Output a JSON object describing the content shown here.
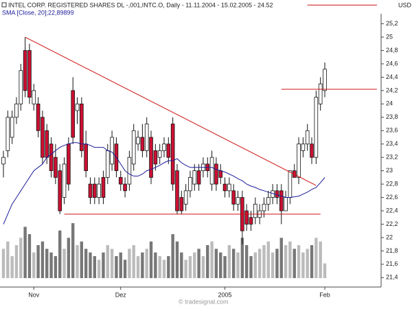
{
  "chart_data": {
    "type": "candlestick",
    "title": "INTEL CORP. REGISTERED SHARES DL -,001,INTC.O, Daily - 11.11.2004 - 15.02.2005 - 24.52",
    "subtitle": "SMA [Close, 20];22,89899",
    "y_axis_label": "USD",
    "watermark": "© tradesignal.com",
    "categories": [
      null,
      null,
      null,
      null,
      null,
      null,
      null,
      "Nov",
      null,
      null,
      null,
      null,
      null,
      null,
      null,
      null,
      null,
      null,
      null,
      null,
      null,
      null,
      null,
      null,
      null,
      null,
      null,
      "Dez",
      null,
      null,
      null,
      null,
      null,
      null,
      null,
      null,
      null,
      null,
      null,
      null,
      null,
      null,
      null,
      null,
      null,
      null,
      null,
      null,
      null,
      null,
      null,
      "2005",
      null,
      null,
      null,
      null,
      null,
      null,
      null,
      null,
      null,
      null,
      null,
      null,
      null,
      null,
      null,
      null,
      null,
      null,
      null,
      null,
      null,
      null,
      "Feb"
    ],
    "open": [
      23.1,
      23.3,
      23.5,
      23.8,
      24.0,
      24.8,
      24.8,
      24.0,
      24.0,
      23.8,
      23.6,
      23.4,
      23.2,
      23.0,
      22.6,
      23.4,
      24.2,
      23.9,
      24.0,
      23.4,
      22.8,
      22.8,
      22.6,
      22.9,
      22.9,
      23.1,
      23.4,
      22.9,
      22.8,
      22.8,
      23.1,
      23.4,
      23.5,
      23.3,
      23.5,
      23.3,
      23.2,
      23.3,
      23.4,
      23.7,
      23.0,
      22.6,
      22.5,
      22.7,
      22.8,
      23.0,
      23.0,
      23.1,
      22.8,
      23.1,
      23.0,
      22.8,
      22.7,
      22.7,
      22.5,
      22.6,
      22.4,
      22.3,
      22.3,
      22.3,
      22.4,
      22.5,
      22.6,
      22.7,
      22.7,
      22.4,
      22.6,
      23.0,
      22.9,
      23.3,
      23.4,
      23.4,
      23.2,
      24.0,
      24.2
    ],
    "high": [
      23.3,
      23.9,
      23.9,
      24.1,
      24.6,
      25.0,
      24.9,
      24.3,
      24.1,
      23.9,
      23.7,
      23.5,
      23.4,
      23.1,
      23.2,
      23.5,
      24.4,
      24.1,
      24.1,
      23.6,
      22.9,
      22.9,
      22.9,
      23.0,
      23.4,
      23.6,
      23.5,
      23.0,
      22.9,
      23.3,
      23.7,
      23.6,
      23.7,
      23.8,
      23.6,
      23.4,
      23.4,
      23.5,
      23.5,
      23.8,
      23.1,
      22.7,
      22.8,
      23.0,
      23.1,
      23.1,
      23.2,
      23.2,
      23.3,
      23.2,
      23.1,
      22.9,
      22.9,
      22.8,
      22.7,
      22.7,
      22.5,
      22.4,
      22.6,
      22.5,
      22.6,
      22.7,
      22.8,
      22.8,
      22.8,
      22.7,
      23.0,
      23.1,
      23.5,
      23.5,
      23.7,
      23.5,
      24.2,
      24.4,
      24.62
    ],
    "low": [
      22.9,
      23.2,
      23.4,
      23.7,
      23.9,
      24.1,
      24.0,
      23.9,
      23.5,
      23.1,
      23.1,
      22.9,
      22.8,
      22.35,
      22.5,
      22.7,
      23.4,
      23.7,
      23.2,
      22.9,
      22.5,
      22.5,
      22.5,
      22.5,
      22.8,
      23.0,
      22.9,
      22.7,
      22.6,
      22.7,
      23.0,
      23.3,
      23.2,
      23.2,
      22.8,
      23.0,
      23.1,
      23.2,
      23.1,
      22.7,
      22.35,
      22.35,
      22.4,
      22.6,
      22.7,
      22.7,
      22.9,
      22.9,
      22.7,
      22.7,
      22.8,
      22.6,
      22.6,
      22.4,
      22.4,
      21.9,
      22.1,
      22.1,
      22.2,
      22.2,
      22.3,
      22.4,
      22.5,
      22.5,
      22.2,
      22.4,
      22.5,
      22.9,
      22.8,
      23.2,
      23.3,
      23.1,
      23.1,
      23.9,
      24.1
    ],
    "close": [
      23.2,
      23.8,
      23.8,
      24.0,
      24.5,
      24.2,
      24.1,
      24.2,
      23.6,
      23.2,
      23.2,
      23.0,
      22.9,
      22.4,
      23.1,
      22.8,
      23.5,
      24.0,
      23.3,
      23.0,
      22.6,
      22.6,
      22.8,
      22.6,
      23.3,
      23.5,
      23.0,
      22.8,
      22.7,
      23.2,
      23.6,
      23.5,
      23.3,
      23.7,
      22.9,
      23.1,
      23.3,
      23.4,
      23.2,
      22.8,
      22.4,
      22.4,
      22.7,
      22.9,
      23.0,
      22.8,
      23.1,
      23.0,
      23.2,
      22.8,
      22.9,
      22.7,
      22.8,
      22.5,
      22.6,
      22.1,
      22.2,
      22.2,
      22.5,
      22.4,
      22.5,
      22.6,
      22.7,
      22.6,
      22.4,
      22.6,
      23.0,
      22.9,
      23.4,
      23.4,
      23.6,
      23.2,
      24.1,
      24.3,
      24.52
    ],
    "volume": [
      40,
      50,
      30,
      45,
      55,
      70,
      60,
      35,
      45,
      50,
      40,
      35,
      30,
      65,
      40,
      55,
      75,
      45,
      50,
      40,
      35,
      30,
      25,
      35,
      45,
      40,
      30,
      35,
      25,
      40,
      45,
      30,
      35,
      40,
      50,
      35,
      30,
      25,
      30,
      60,
      50,
      35,
      25,
      30,
      35,
      40,
      30,
      45,
      50,
      40,
      35,
      30,
      45,
      40,
      35,
      55,
      45,
      30,
      35,
      40,
      45,
      50,
      35,
      40,
      55,
      45,
      50,
      40,
      45,
      35,
      40,
      45,
      55,
      50,
      20
    ],
    "up_color": "#ffffff",
    "down_color": "#cc1133",
    "volume_colors": [
      "#777777",
      "#bbbbbb"
    ],
    "series": [
      {
        "name": "SMA [Close, 20]",
        "color": "#1a1a99",
        "values": [
          22.2,
          22.35,
          22.5,
          22.6,
          22.7,
          22.8,
          22.9,
          23.0,
          23.05,
          23.1,
          23.2,
          23.25,
          23.3,
          23.35,
          23.38,
          23.4,
          23.42,
          23.42,
          23.4,
          23.4,
          23.38,
          23.35,
          23.35,
          23.35,
          23.3,
          23.28,
          23.2,
          23.1,
          23.0,
          22.95,
          22.92,
          22.92,
          22.95,
          23.0,
          23.02,
          23.05,
          23.08,
          23.12,
          23.15,
          23.15,
          23.18,
          23.12,
          23.08,
          23.05,
          23.05,
          23.05,
          23.05,
          23.05,
          23.05,
          23.02,
          23.0,
          22.98,
          22.95,
          22.92,
          22.88,
          22.85,
          22.8,
          22.77,
          22.75,
          22.72,
          22.7,
          22.68,
          22.66,
          22.64,
          22.62,
          22.6,
          22.6,
          22.61,
          22.62,
          22.65,
          22.68,
          22.72,
          22.75,
          22.82,
          22.89899
        ]
      }
    ],
    "trendlines": [
      {
        "color": "#cc1111",
        "x": [
          5,
          72
        ],
        "y": [
          25.0,
          22.78
        ]
      },
      {
        "color": "#cc1111",
        "x": [
          14,
          73
        ],
        "y": [
          22.35,
          22.35
        ]
      },
      {
        "color": "#cc1111",
        "x": [
          64,
          86
        ],
        "y": [
          24.22,
          24.22
        ]
      },
      {
        "color": "#cc1111",
        "x": [
          70,
          86
        ],
        "y": [
          25.48,
          25.48
        ]
      }
    ],
    "ylim": [
      21.29,
      25.35
    ],
    "yticks": [
      {
        "value": 21.4,
        "label": "21,4"
      },
      {
        "value": 21.6,
        "label": "21,6"
      },
      {
        "value": 21.8,
        "label": "21,8"
      },
      22,
      {
        "value": 22.2,
        "label": "22,2"
      },
      {
        "value": 22.4,
        "label": "22,4"
      },
      {
        "value": 22.6,
        "label": "22,6"
      },
      {
        "value": 22.8,
        "label": "22,8"
      },
      23,
      {
        "value": 23.2,
        "label": "23,2"
      },
      {
        "value": 23.4,
        "label": "23,4"
      },
      {
        "value": 23.6,
        "label": "23,6"
      },
      {
        "value": 23.8,
        "label": "23,8"
      },
      24,
      {
        "value": 24.2,
        "label": "24,2"
      },
      {
        "value": 24.4,
        "label": "24,4"
      },
      {
        "value": 24.6,
        "label": "24,6"
      },
      {
        "value": 24.8,
        "label": "24,8"
      },
      25,
      {
        "value": 25.2,
        "label": "25,2"
      }
    ]
  }
}
